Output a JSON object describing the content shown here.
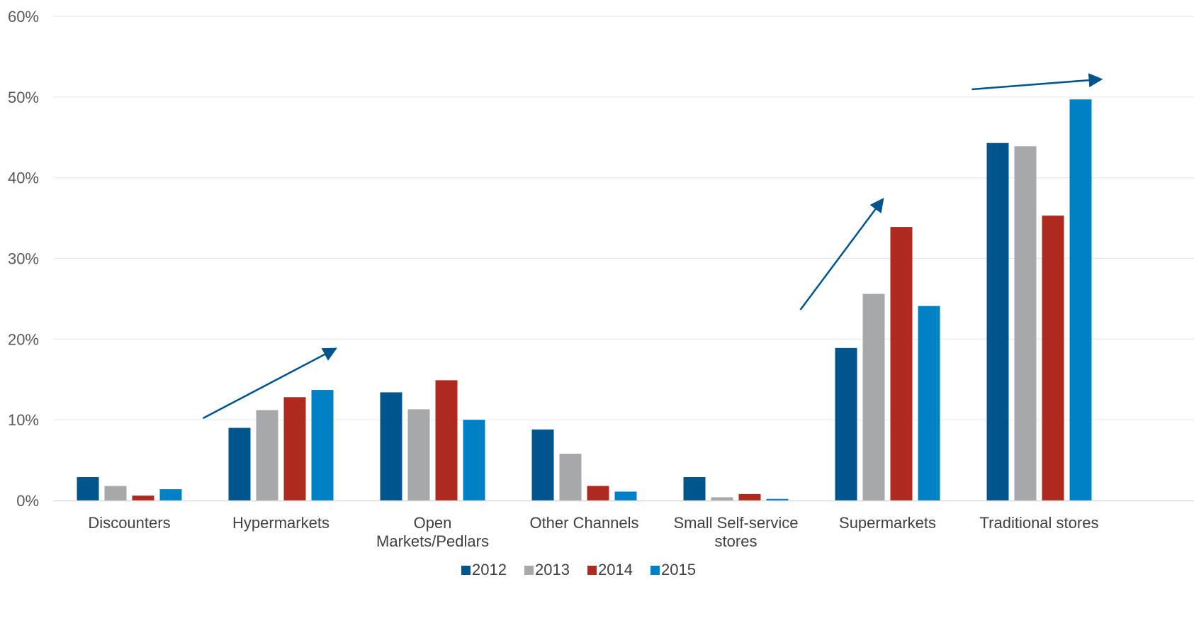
{
  "chart_data": {
    "type": "bar",
    "categories": [
      [
        "Discounters"
      ],
      [
        "Hypermarkets"
      ],
      [
        "Open",
        "Markets/Pedlars"
      ],
      [
        "Other Channels"
      ],
      [
        "Small Self-service",
        "stores"
      ],
      [
        "Supermarkets"
      ],
      [
        "Traditional stores"
      ]
    ],
    "series": [
      {
        "name": "2012",
        "color": "#00558C",
        "values": [
          2.9,
          9.0,
          13.4,
          8.8,
          2.9,
          18.9,
          44.3
        ]
      },
      {
        "name": "2013",
        "color": "#A6A8AB",
        "values": [
          1.8,
          11.2,
          11.3,
          5.8,
          0.4,
          25.6,
          43.9
        ]
      },
      {
        "name": "2014",
        "color": "#B0291F",
        "values": [
          0.6,
          12.8,
          14.9,
          1.8,
          0.8,
          33.9,
          35.3
        ]
      },
      {
        "name": "2015",
        "color": "#0081C6",
        "values": [
          1.4,
          13.7,
          10.0,
          1.1,
          0.2,
          24.1,
          49.7
        ]
      }
    ],
    "ylim": [
      0,
      60
    ],
    "yticks": [
      0,
      10,
      20,
      30,
      40,
      50,
      60
    ],
    "ytick_labels": [
      "0%",
      "10%",
      "20%",
      "30%",
      "40%",
      "50%",
      "60%"
    ],
    "title": "",
    "xlabel": "",
    "ylabel": "",
    "grid": true,
    "legend": "bottom-center",
    "annotations": [
      {
        "type": "trend-arrow",
        "category": "Hypermarkets",
        "color": "#00558C"
      },
      {
        "type": "trend-arrow",
        "category": "Supermarkets",
        "color": "#00558C"
      },
      {
        "type": "trend-arrow",
        "category": "Traditional stores",
        "color": "#00558C"
      }
    ]
  }
}
